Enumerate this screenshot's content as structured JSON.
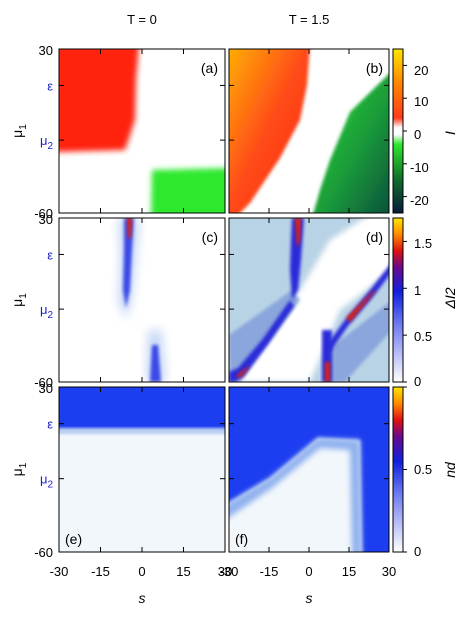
{
  "chart_data": {
    "type": "heatmap",
    "column_titles": [
      "T = 0",
      "T = 1.5"
    ],
    "x_ticks": [
      "-30",
      "-15",
      "0",
      "15",
      "30"
    ],
    "x_label": "s",
    "y_label": "μ1",
    "y_ticks": [
      {
        "label": "30",
        "value": 30,
        "highlight": false
      },
      {
        "label": "ε",
        "value": 10,
        "highlight": true
      },
      {
        "label": "μ2",
        "value": -20,
        "highlight": true
      },
      {
        "label": "-60",
        "value": -60,
        "highlight": false
      }
    ],
    "xlim": [
      -30,
      30
    ],
    "ylim": [
      -60,
      30
    ],
    "rows": [
      {
        "quantity": "I",
        "colorbar_ticks": [
          "20",
          "10",
          "0",
          "-10",
          "-20"
        ],
        "colorbar_range": [
          -25,
          25
        ],
        "colormap": "diverging red-white-green",
        "panels": [
          "(a)",
          "(b)"
        ]
      },
      {
        "quantity": "ΔI2",
        "colorbar_ticks": [
          "1.5",
          "1",
          "0.5",
          "0"
        ],
        "colorbar_range": [
          0,
          1.75
        ],
        "colormap": "white-blue-red-yellow",
        "panels": [
          "(c)",
          "(d)"
        ]
      },
      {
        "quantity": "nd",
        "colorbar_ticks": [
          "1",
          "0.5",
          "0"
        ],
        "colorbar_range": [
          0,
          1
        ],
        "colormap": "white-blue-red-yellow",
        "panels": [
          "(e)",
          "(f)"
        ]
      }
    ]
  }
}
